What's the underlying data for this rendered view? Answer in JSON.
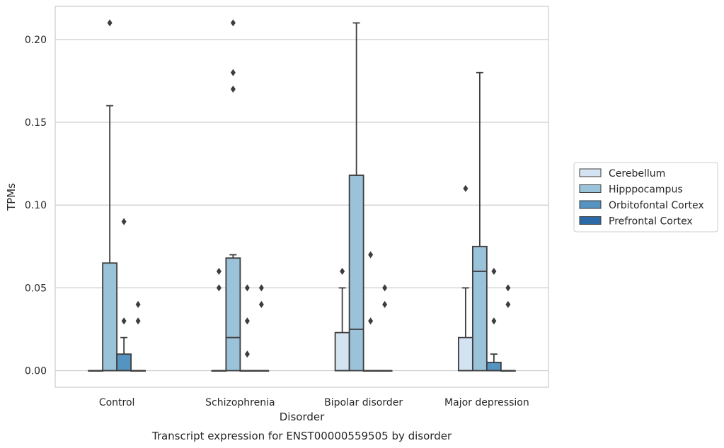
{
  "chart_data": {
    "type": "box",
    "title": "",
    "caption": "Transcript expression for ENST00000559505 by disorder",
    "xlabel": "Disorder",
    "ylabel": "TPMs",
    "ylim": [
      -0.01,
      0.22
    ],
    "yticks": [
      0.0,
      0.05,
      0.1,
      0.15,
      0.2
    ],
    "ytick_labels": [
      "0.00",
      "0.05",
      "0.10",
      "0.15",
      "0.20"
    ],
    "grid": "horizontal",
    "legend_position": "right",
    "categories": [
      "Control",
      "Schizophrenia",
      "Bipolar disorder",
      "Major depression"
    ],
    "series": [
      {
        "name": "Cerebellum",
        "color": "#d4e3f1",
        "boxes": [
          {
            "q1": 0,
            "median": 0,
            "q3": 0,
            "whisker_low": 0,
            "whisker_high": 0,
            "outliers": []
          },
          {
            "q1": 0,
            "median": 0,
            "q3": 0,
            "whisker_low": 0,
            "whisker_high": 0,
            "outliers": [
              0.05,
              0.06
            ]
          },
          {
            "q1": 0,
            "median": 0,
            "q3": 0.023,
            "whisker_low": 0,
            "whisker_high": 0.05,
            "outliers": [
              0.06
            ]
          },
          {
            "q1": 0,
            "median": 0,
            "q3": 0.02,
            "whisker_low": 0,
            "whisker_high": 0.05,
            "outliers": [
              0.11
            ]
          }
        ]
      },
      {
        "name": "Hipppocampus",
        "color": "#9ac2d9",
        "boxes": [
          {
            "q1": 0,
            "median": 0,
            "q3": 0.065,
            "whisker_low": 0,
            "whisker_high": 0.16,
            "outliers": [
              0.21
            ]
          },
          {
            "q1": 0,
            "median": 0.02,
            "q3": 0.068,
            "whisker_low": 0,
            "whisker_high": 0.07,
            "outliers": [
              0.17,
              0.18,
              0.21
            ]
          },
          {
            "q1": 0,
            "median": 0.025,
            "q3": 0.118,
            "whisker_low": 0,
            "whisker_high": 0.21,
            "outliers": []
          },
          {
            "q1": 0,
            "median": 0.06,
            "q3": 0.075,
            "whisker_low": 0,
            "whisker_high": 0.18,
            "outliers": []
          }
        ]
      },
      {
        "name": "Orbitofontal Cortex",
        "color": "#5593c1",
        "boxes": [
          {
            "q1": 0,
            "median": 0,
            "q3": 0.01,
            "whisker_low": 0,
            "whisker_high": 0.02,
            "outliers": [
              0.03,
              0.09
            ]
          },
          {
            "q1": 0,
            "median": 0,
            "q3": 0,
            "whisker_low": 0,
            "whisker_high": 0,
            "outliers": [
              0.01,
              0.03,
              0.05
            ]
          },
          {
            "q1": 0,
            "median": 0,
            "q3": 0,
            "whisker_low": 0,
            "whisker_high": 0,
            "outliers": [
              0.03,
              0.07
            ]
          },
          {
            "q1": 0,
            "median": 0,
            "q3": 0.005,
            "whisker_low": 0,
            "whisker_high": 0.01,
            "outliers": [
              0.03,
              0.06
            ]
          }
        ]
      },
      {
        "name": "Prefrontal Cortex",
        "color": "#2b6aa6",
        "boxes": [
          {
            "q1": 0,
            "median": 0,
            "q3": 0,
            "whisker_low": 0,
            "whisker_high": 0,
            "outliers": [
              0.03,
              0.04
            ]
          },
          {
            "q1": 0,
            "median": 0,
            "q3": 0,
            "whisker_low": 0,
            "whisker_high": 0,
            "outliers": [
              0.04,
              0.05
            ]
          },
          {
            "q1": 0,
            "median": 0,
            "q3": 0,
            "whisker_low": 0,
            "whisker_high": 0,
            "outliers": [
              0.04,
              0.05
            ]
          },
          {
            "q1": 0,
            "median": 0,
            "q3": 0,
            "whisker_low": 0,
            "whisker_high": 0,
            "outliers": [
              0.04,
              0.05
            ]
          }
        ]
      }
    ]
  }
}
